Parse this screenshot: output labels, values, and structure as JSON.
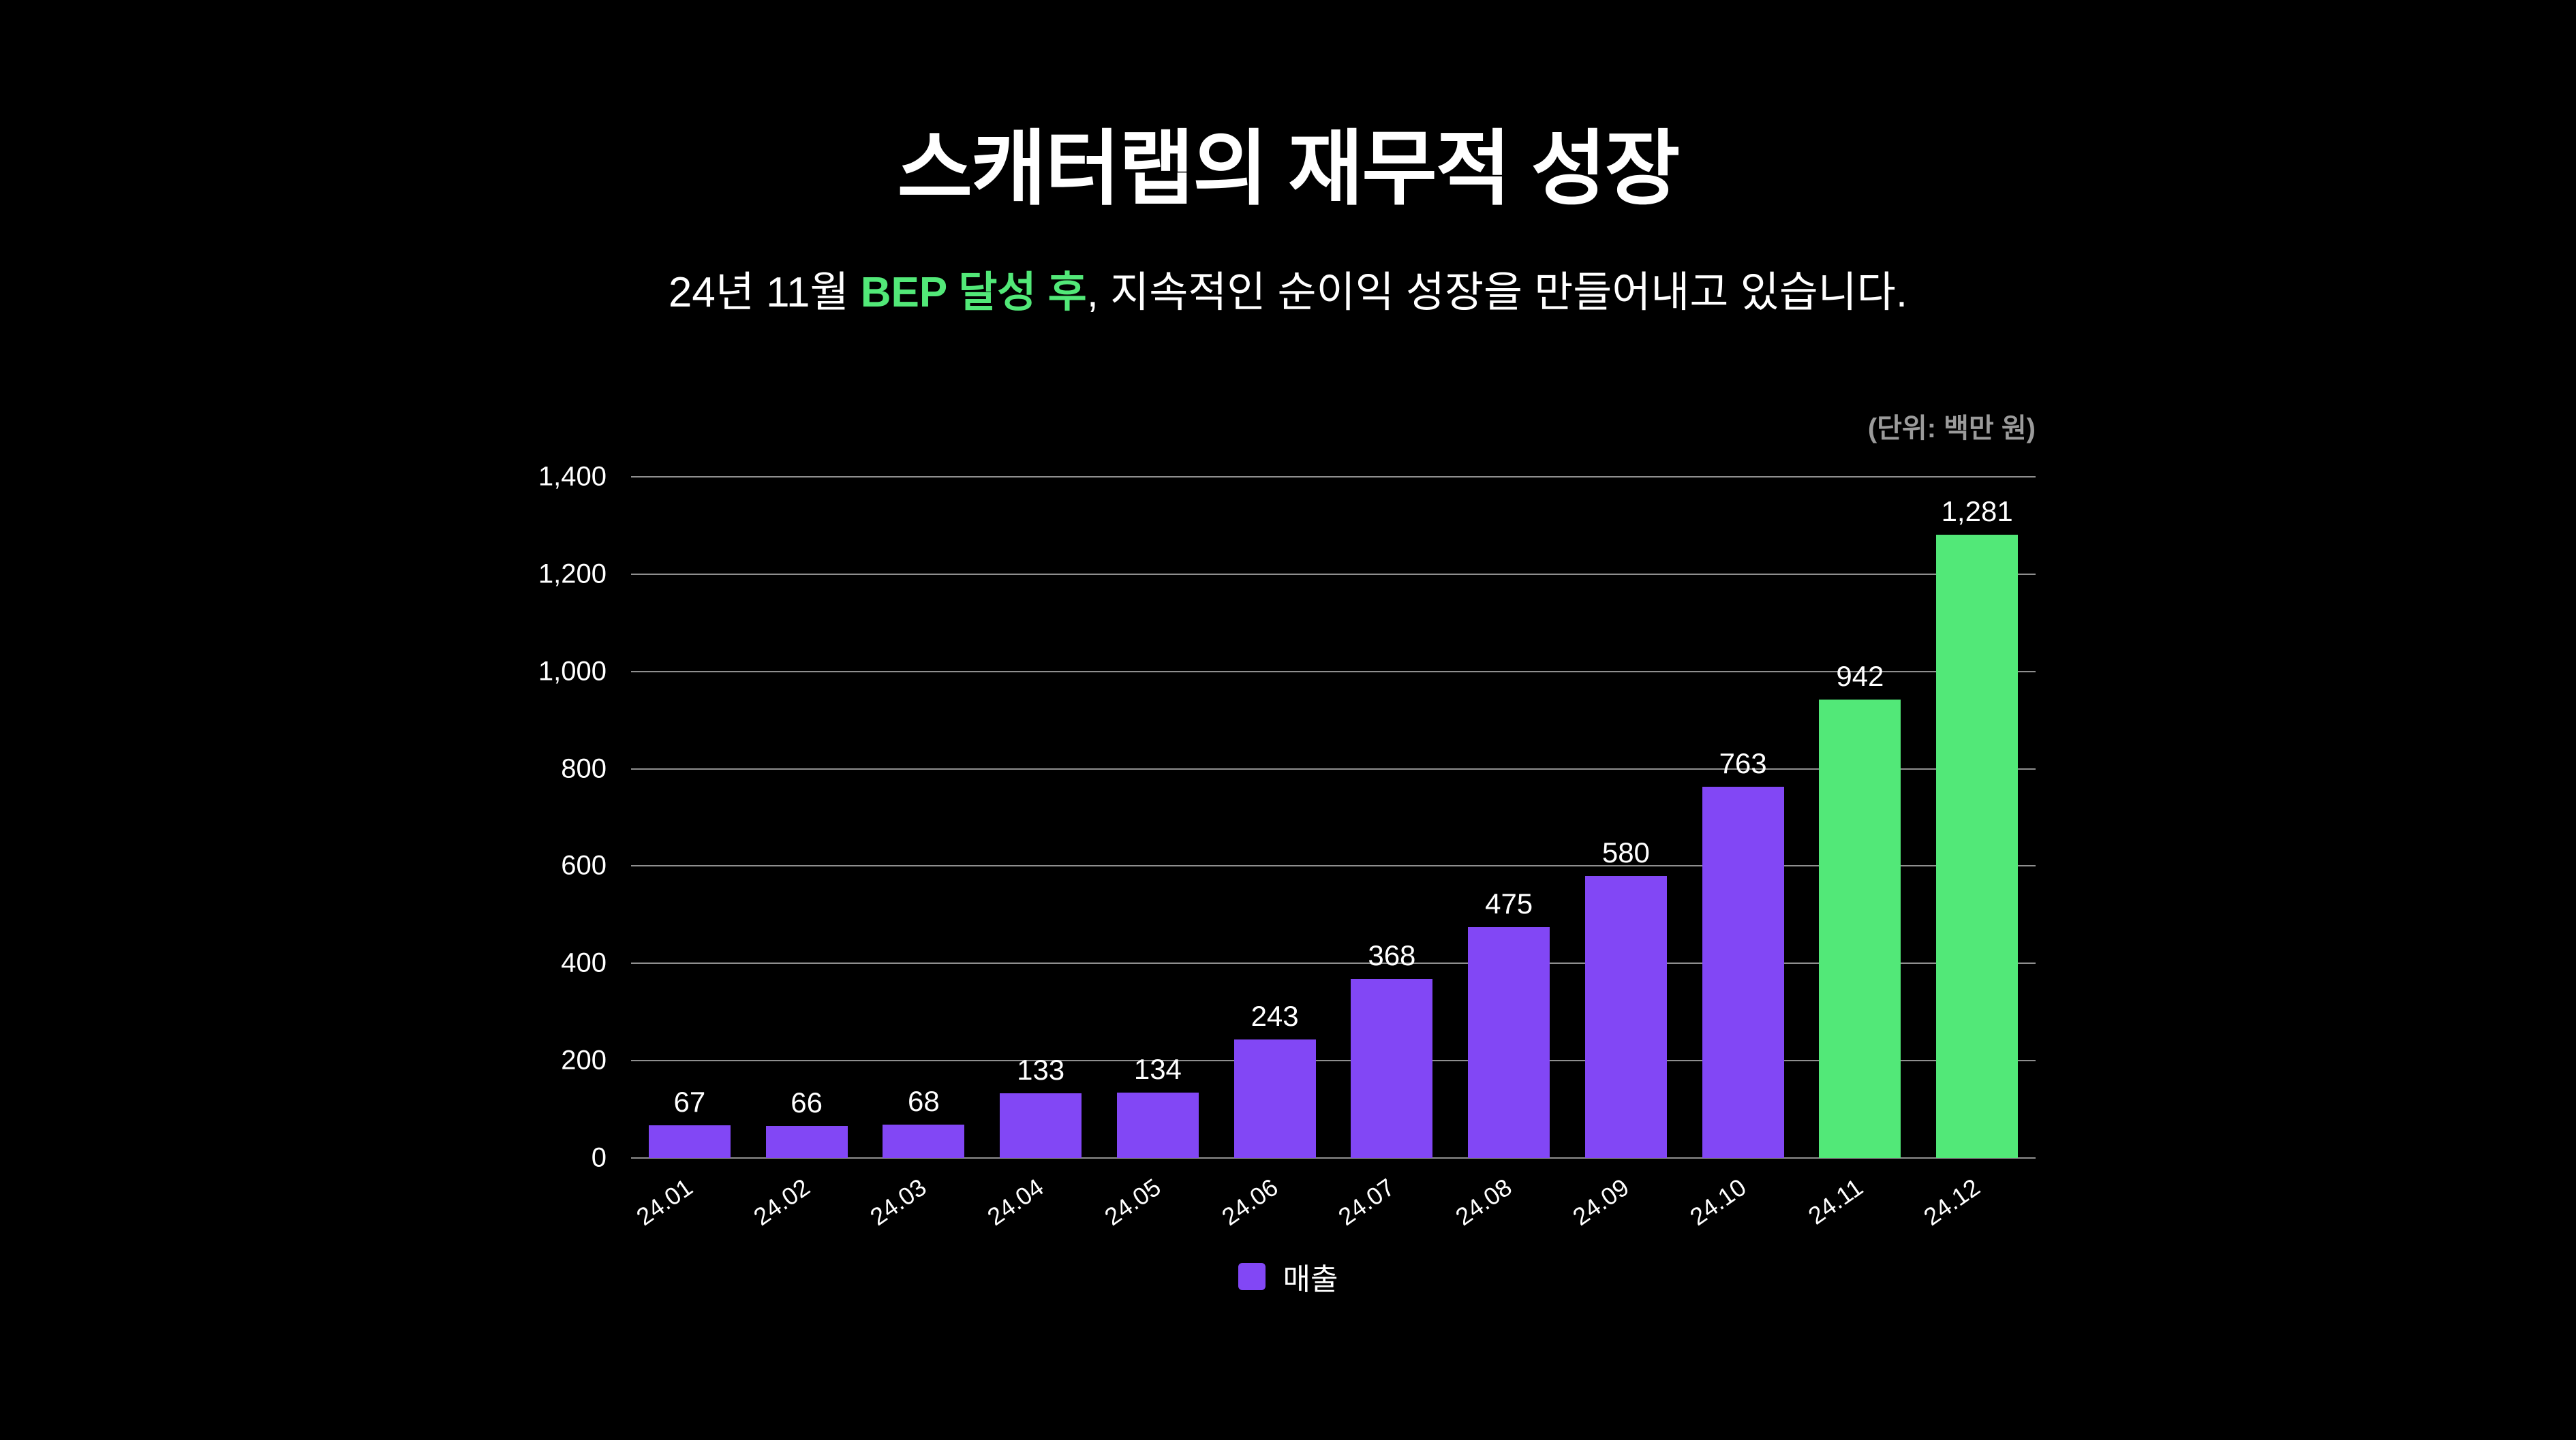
{
  "header": {
    "title": "스캐터랩의 재무적 성장",
    "subtitle_prefix": "24년 11월 ",
    "subtitle_highlight": "BEP 달성 후",
    "subtitle_suffix": ", 지속적인 순이익 성장을 만들어내고 있습니다."
  },
  "unit_label": "(단위: 백만 원)",
  "colors": {
    "background": "#000000",
    "bar_primary": "#8247F5",
    "bar_highlight": "#52E878",
    "accent_green": "#52E878",
    "gridline": "#8F8F8F",
    "text_primary": "#FFFFFF",
    "text_muted": "#9B9B9B"
  },
  "chart_data": {
    "type": "bar",
    "title": "스캐터랩의 재무적 성장",
    "categories": [
      "24.01",
      "24.02",
      "24.03",
      "24.04",
      "24.05",
      "24.06",
      "24.07",
      "24.08",
      "24.09",
      "24.10",
      "24.11",
      "24.12"
    ],
    "series": [
      {
        "name": "매출",
        "values": [
          67,
          66,
          68,
          133,
          134,
          243,
          368,
          475,
          580,
          763,
          942,
          1281
        ]
      }
    ],
    "highlight_categories": [
      "24.11",
      "24.12"
    ],
    "xlabel": "",
    "ylabel": "",
    "unit": "백만 원",
    "ylim": [
      0,
      1400
    ],
    "ytick_step": 200,
    "grid": true,
    "value_labels": true,
    "legend_position": "bottom"
  }
}
